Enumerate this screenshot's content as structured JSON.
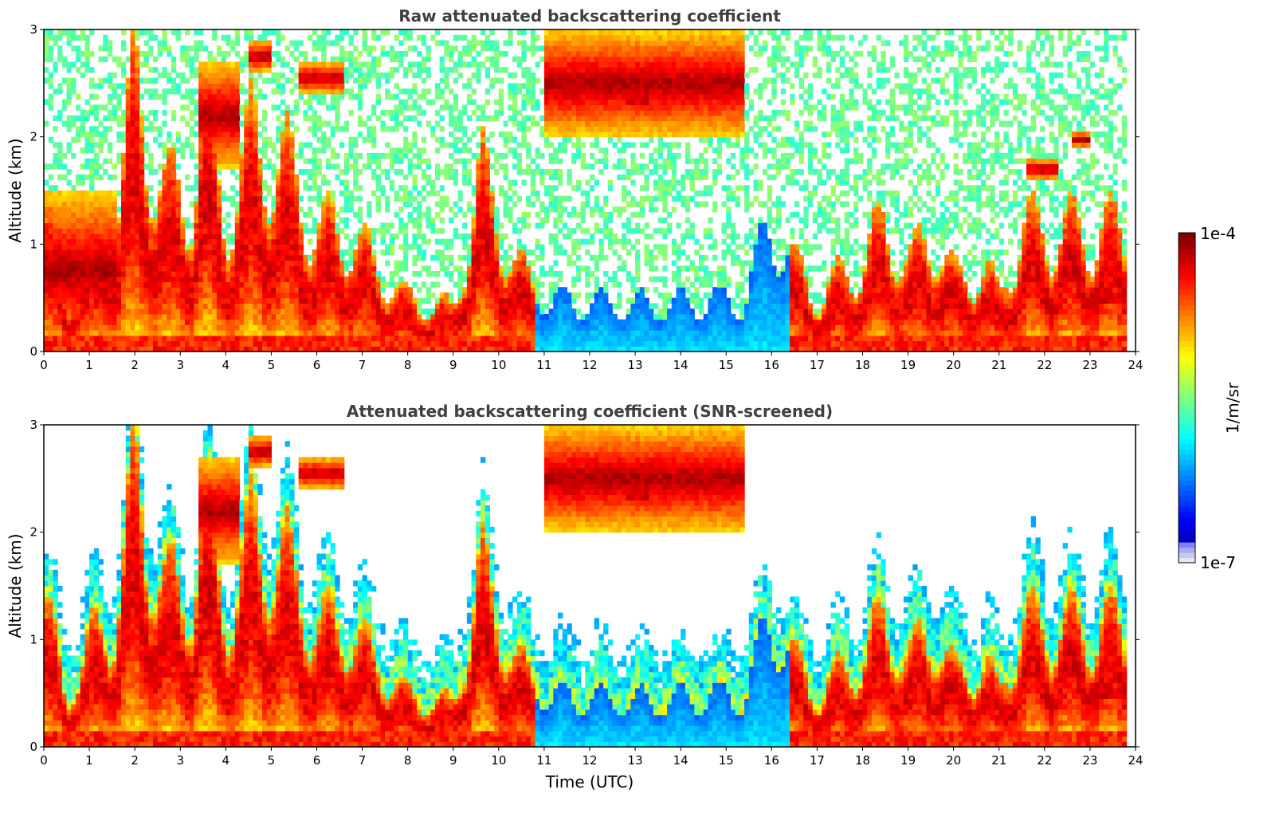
{
  "figure": {
    "colorbar": {
      "label": "1/m/sr",
      "max_label": "1e-4",
      "min_label": "1e-7",
      "scale": "log",
      "range": [
        1e-07,
        0.0001
      ],
      "colormap": "jet"
    }
  },
  "chart_data": [
    {
      "type": "heatmap",
      "title": "Raw attenuated backscattering coefficient",
      "xlabel": "",
      "ylabel": "Altitude (km)",
      "xlim": [
        0,
        24
      ],
      "ylim": [
        0,
        3
      ],
      "xticks": [
        0,
        1,
        2,
        3,
        4,
        5,
        6,
        7,
        8,
        9,
        10,
        11,
        12,
        13,
        14,
        15,
        16,
        17,
        18,
        19,
        20,
        21,
        22,
        23,
        24
      ],
      "yticks": [
        0,
        1,
        2,
        3
      ],
      "data_extent_x": [
        0,
        23.8
      ],
      "screening": "none",
      "cloud_layers": [
        {
          "start": 0.0,
          "end": 1.6,
          "top": 1.5,
          "note": "boundary layer with aerosol"
        },
        {
          "start": 3.4,
          "end": 4.3,
          "base": 1.7,
          "top": 2.7
        },
        {
          "start": 4.5,
          "end": 5.0,
          "base": 2.6,
          "top": 2.9
        },
        {
          "start": 5.6,
          "end": 6.6,
          "base": 2.4,
          "top": 2.7
        },
        {
          "start": 11.0,
          "end": 15.4,
          "base": 2.0,
          "top": 3.0
        },
        {
          "start": 12.8,
          "end": 13.3,
          "base": 2.2,
          "top": 2.5
        },
        {
          "start": 21.6,
          "end": 22.3,
          "base": 1.6,
          "top": 1.8
        },
        {
          "start": 22.6,
          "end": 23.0,
          "base": 1.9,
          "top": 2.05
        },
        {
          "start": 23.0,
          "end": 23.8,
          "base": 0.35,
          "top": 0.65
        }
      ]
    },
    {
      "type": "heatmap",
      "title": "Attenuated backscattering coefficient (SNR-screened)",
      "xlabel": "Time (UTC)",
      "ylabel": "Altitude (km)",
      "xlim": [
        0,
        24
      ],
      "ylim": [
        0,
        3
      ],
      "xticks": [
        0,
        1,
        2,
        3,
        4,
        5,
        6,
        7,
        8,
        9,
        10,
        11,
        12,
        13,
        14,
        15,
        16,
        17,
        18,
        19,
        20,
        21,
        22,
        23,
        24
      ],
      "yticks": [
        0,
        1,
        2,
        3
      ],
      "data_extent_x": [
        0,
        23.8
      ],
      "screening": "snr",
      "cloud_layers": [
        {
          "start": 3.4,
          "end": 4.3,
          "base": 1.7,
          "top": 2.7
        },
        {
          "start": 4.5,
          "end": 5.0,
          "base": 2.6,
          "top": 2.9
        },
        {
          "start": 5.6,
          "end": 6.6,
          "base": 2.4,
          "top": 2.7
        },
        {
          "start": 11.0,
          "end": 15.4,
          "base": 2.0,
          "top": 3.0
        },
        {
          "start": 12.8,
          "end": 13.3,
          "base": 2.2,
          "top": 2.5
        },
        {
          "start": 23.0,
          "end": 23.8,
          "base": 0.35,
          "top": 0.65
        }
      ]
    }
  ]
}
